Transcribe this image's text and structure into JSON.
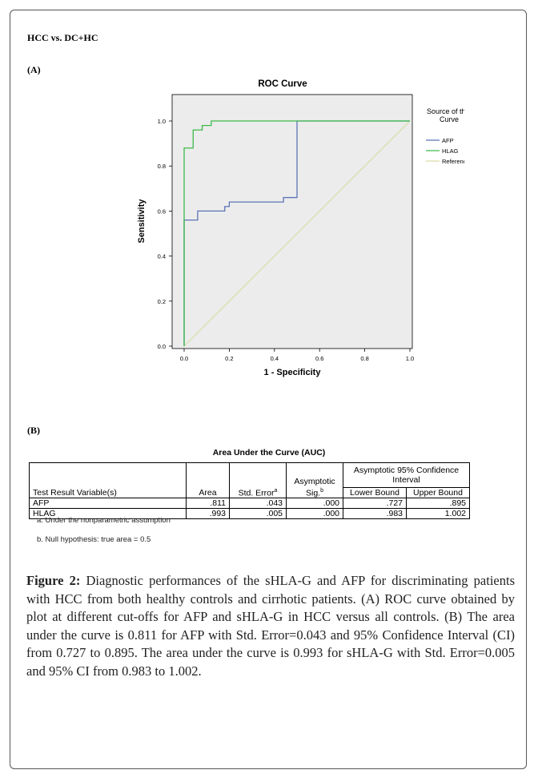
{
  "panel_title": "HCC vs. DC+HC",
  "label_a": "(A)",
  "label_b": "(B)",
  "chart_data": {
    "type": "line",
    "title": "ROC Curve",
    "xlabel": "1 - Specificity",
    "ylabel": "Sensitivity",
    "xlim": [
      0,
      1
    ],
    "ylim": [
      0,
      1
    ],
    "xticks": [
      "0.0",
      "0.2",
      "0.4",
      "0.6",
      "0.8",
      "1.0"
    ],
    "yticks": [
      "0.0",
      "0.2",
      "0.4",
      "0.6",
      "0.8",
      "1.0"
    ],
    "grid": false,
    "legend_title": "Source of the Curve",
    "legend_position": "right",
    "series": [
      {
        "name": "AFP",
        "color": "#5b74b5",
        "x": [
          0,
          0,
          0.06,
          0.06,
          0.18,
          0.18,
          0.2,
          0.2,
          0.44,
          0.44,
          0.5,
          0.5,
          1.0
        ],
        "y": [
          0,
          0.56,
          0.56,
          0.6,
          0.6,
          0.62,
          0.62,
          0.64,
          0.64,
          0.66,
          0.66,
          1.0,
          1.0
        ]
      },
      {
        "name": "HLAG",
        "color": "#3dba4a",
        "x": [
          0,
          0,
          0.04,
          0.04,
          0.08,
          0.08,
          0.12,
          0.12,
          1.0
        ],
        "y": [
          0,
          0.88,
          0.88,
          0.96,
          0.96,
          0.98,
          0.98,
          1.0,
          1.0
        ]
      },
      {
        "name": "Reference Line",
        "color": "#d9dca8",
        "x": [
          0,
          1
        ],
        "y": [
          0,
          1
        ]
      }
    ]
  },
  "auc_table": {
    "title": "Area Under the Curve (AUC)",
    "headers": {
      "variable": "Test Result Variable(s)",
      "area": "Area",
      "std_error": "Std. Error",
      "std_error_sup": "a",
      "asym_sig_line1": "Asymptotic",
      "asym_sig_line2": "Sig.",
      "asym_sig_sup": "b",
      "ci_group": "Asymptotic 95% Confidence Interval",
      "lower": "Lower Bound",
      "upper": "Upper Bound"
    },
    "rows": [
      {
        "variable": "AFP",
        "area": ".811",
        "std_error": ".043",
        "sig": ".000",
        "lower": ".727",
        "upper": ".895"
      },
      {
        "variable": "HLAG",
        "area": ".993",
        "std_error": ".005",
        "sig": ".000",
        "lower": ".983",
        "upper": "1.002"
      }
    ],
    "footnote_a": "a. Under the nonparametric assumption",
    "footnote_b": "b. Null hypothesis: true area = 0.5"
  },
  "caption": {
    "label": "Figure 2:",
    "text": " Diagnostic performances of the sHLA-G and AFP for discriminating patients with HCC from both healthy controls and cirrhotic patients. (A) ROC curve obtained by plot at different cut-offs for AFP and sHLA-G in HCC versus all controls. (B) The area under the curve is 0.811 for AFP with Std. Error=0.043 and 95% Confidence Interval (CI) from 0.727 to 0.895. The area under the curve is 0.993 for sHLA-G with Std. Error=0.005 and 95% CI from 0.983 to 1.002."
  },
  "colors": {
    "plot_background": "#ececec",
    "axis": "#000000"
  }
}
